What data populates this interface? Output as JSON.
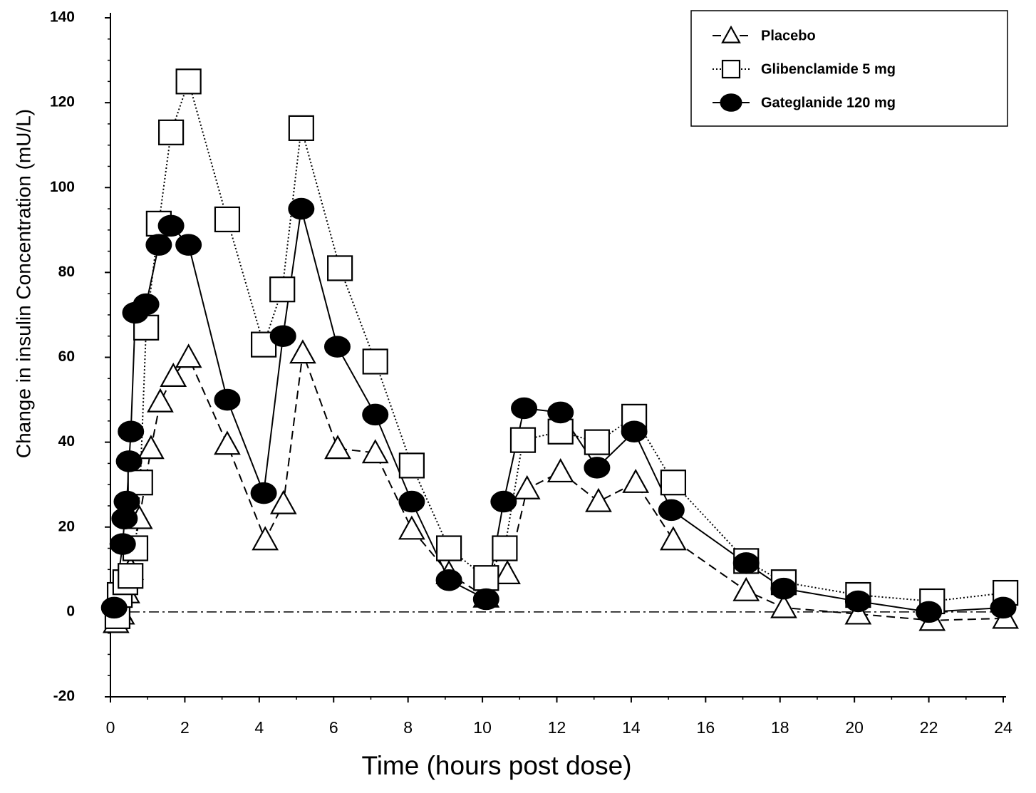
{
  "chart_data": {
    "type": "line",
    "xlabel": "Time (hours post dose)",
    "ylabel": "Change in insulin Concentration  (mU/L)",
    "xlim": [
      0,
      24
    ],
    "ylim": [
      -20,
      140
    ],
    "xticks": [
      0,
      2,
      4,
      6,
      8,
      10,
      12,
      14,
      16,
      18,
      20,
      22,
      24
    ],
    "yticks": [
      -20,
      0,
      20,
      40,
      60,
      80,
      100,
      120,
      140
    ],
    "hline": 0,
    "legend": "upper right",
    "series": [
      {
        "name": "Placebo",
        "marker": "triangle",
        "dash": "dashed",
        "color": "#000000",
        "x": [
          0.15,
          0.3,
          0.44,
          0.54,
          0.78,
          1.09,
          1.34,
          1.69,
          2.1,
          3.14,
          4.16,
          4.65,
          5.17,
          6.11,
          7.12,
          8.1,
          9.1,
          10.1,
          10.67,
          11.2,
          12.1,
          13.12,
          14.12,
          15.13,
          17.09,
          18.1,
          20.1,
          22.09,
          24.06
        ],
        "values": [
          -2.5,
          -0.5,
          4.5,
          10,
          22,
          38.5,
          49.5,
          55.5,
          60,
          39.5,
          17,
          25.5,
          61,
          38.5,
          37.5,
          19.5,
          9,
          3.5,
          9,
          29,
          33,
          26,
          30.5,
          17,
          5,
          1,
          -0.5,
          -2,
          -1.5
        ]
      },
      {
        "name": "Glibenclamide 5 mg",
        "marker": "square",
        "dash": "dotted",
        "color": "#000000",
        "x": [
          0.19,
          0.25,
          0.4,
          0.54,
          0.67,
          0.8,
          0.96,
          1.3,
          1.63,
          2.1,
          3.14,
          4.12,
          4.62,
          5.13,
          6.17,
          7.12,
          8.1,
          9.1,
          10.1,
          10.6,
          11.09,
          12.1,
          13.08,
          14.08,
          15.13,
          17.09,
          18.1,
          20.1,
          22.09,
          24.06
        ],
        "values": [
          -1,
          4,
          7,
          8.5,
          15,
          30.5,
          67,
          91.5,
          113,
          125,
          92.5,
          63,
          76,
          114,
          81,
          59,
          34.5,
          15,
          8,
          15,
          40.5,
          42.5,
          40,
          46,
          30.5,
          12,
          7,
          4,
          2.5,
          4.5
        ]
      },
      {
        "name": "Gateglanide 120 mg",
        "marker": "circle",
        "dash": "solid",
        "color": "#000000",
        "x": [
          0.1,
          0.33,
          0.38,
          0.44,
          0.5,
          0.55,
          0.67,
          0.96,
          1.3,
          1.63,
          2.1,
          3.14,
          4.12,
          4.64,
          5.13,
          6.1,
          7.12,
          8.1,
          9.1,
          10.1,
          10.57,
          11.12,
          12.1,
          13.08,
          14.08,
          15.08,
          17.09,
          18.1,
          20.1,
          22.0,
          24.0
        ],
        "values": [
          1,
          16,
          22,
          26,
          35.5,
          42.5,
          70.5,
          72.5,
          86.5,
          91,
          86.5,
          50,
          28,
          65,
          95,
          62.5,
          46.5,
          26,
          7.5,
          3,
          26,
          48,
          47,
          34,
          42.5,
          24,
          11.5,
          5.5,
          2.5,
          0,
          1
        ]
      }
    ]
  }
}
